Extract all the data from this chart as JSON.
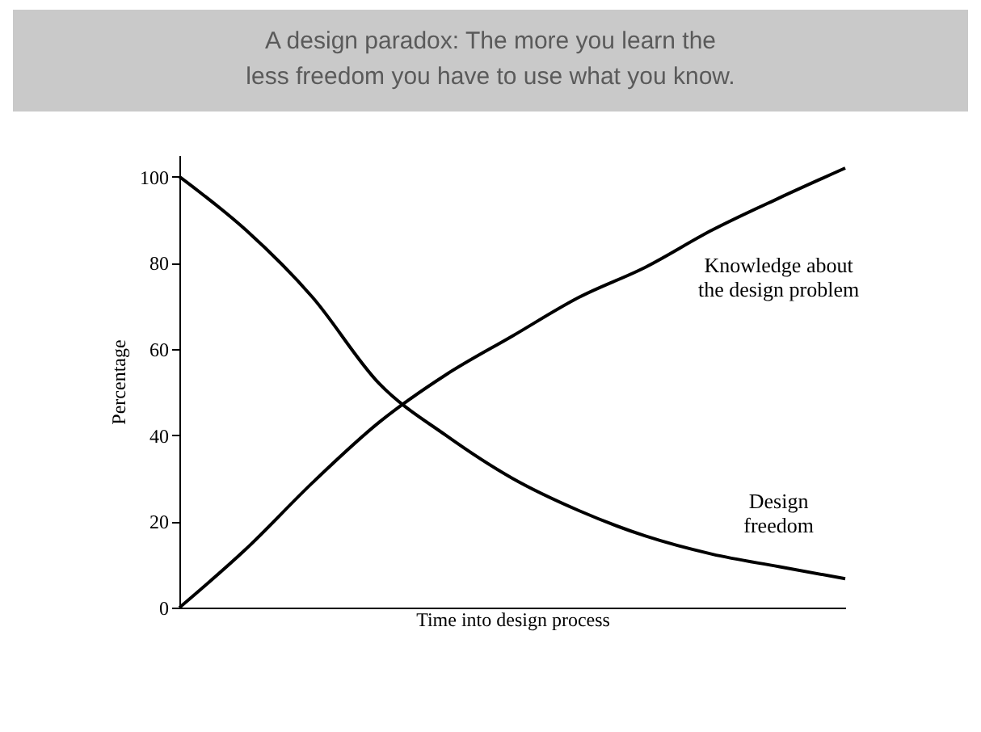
{
  "chart_data": {
    "type": "line",
    "title": "A design paradox: The more you learn the less freedom you have to use what you know.",
    "xlabel": "Time into design process",
    "ylabel": "Percentage",
    "categories": [
      null,
      null,
      null,
      null,
      null,
      null,
      null,
      null,
      null,
      null,
      null
    ],
    "series": [
      {
        "name": "Knowledge about the design problem",
        "color": "#000000",
        "values": [
          0,
          13.6,
          29,
          43,
          54,
          63,
          72,
          79,
          87.6,
          95,
          102
        ]
      },
      {
        "name": "Design freedom",
        "color": "#000000",
        "values": [
          100,
          87.6,
          72,
          52,
          40,
          30,
          22.5,
          16.6,
          12.4,
          9.5,
          6.7
        ]
      }
    ],
    "ylim": [
      0,
      105
    ],
    "yticks": [
      0,
      20,
      40,
      60,
      80,
      100
    ],
    "grid": false,
    "legend": false,
    "marker": "none",
    "line_style": "solid"
  }
}
